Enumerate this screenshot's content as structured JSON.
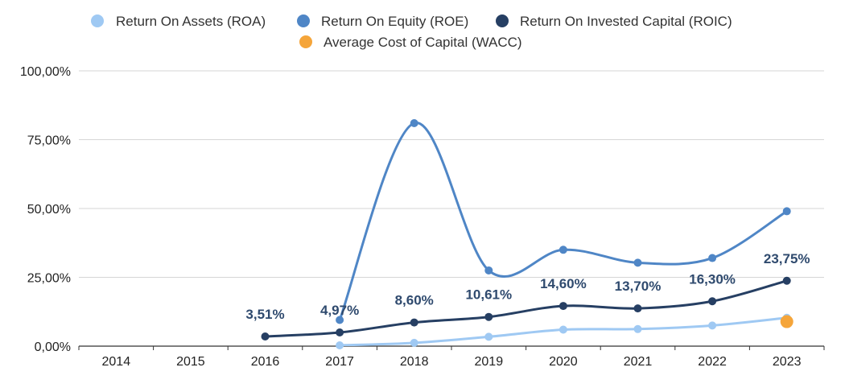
{
  "chart_data": {
    "type": "line",
    "categories": [
      "2014",
      "2015",
      "2016",
      "2017",
      "2018",
      "2019",
      "2020",
      "2021",
      "2022",
      "2023"
    ],
    "ylim": [
      0,
      100
    ],
    "yticks": [
      "0,00%",
      "25,00%",
      "50,00%",
      "75,00%",
      "100,00%"
    ],
    "ytick_values": [
      0,
      25,
      50,
      75,
      100
    ],
    "grid": true,
    "legend_position": "top",
    "series": [
      {
        "name": "Return On Assets (ROA)",
        "color": "#9fc9f3",
        "values": [
          null,
          null,
          null,
          0.3,
          1.2,
          3.4,
          6.0,
          6.2,
          7.5,
          10.3
        ]
      },
      {
        "name": "Return On Equity (ROE)",
        "color": "#4f86c6",
        "values": [
          null,
          null,
          null,
          9.5,
          81.0,
          27.5,
          35.0,
          30.3,
          32.0,
          49.0
        ]
      },
      {
        "name": "Return On Invested Capital (ROIC)",
        "color": "#263f63",
        "values": [
          null,
          null,
          3.51,
          4.97,
          8.6,
          10.61,
          14.6,
          13.7,
          16.3,
          23.75
        ],
        "data_labels": [
          null,
          null,
          "3,51%",
          "4,97%",
          "8,60%",
          "10,61%",
          "14,60%",
          "13,70%",
          "16,30%",
          "23,75%"
        ]
      },
      {
        "name": "Average Cost of Capital (WACC)",
        "color": "#f5a53a",
        "values": [
          null,
          null,
          null,
          null,
          null,
          null,
          null,
          null,
          null,
          8.9
        ]
      }
    ]
  }
}
